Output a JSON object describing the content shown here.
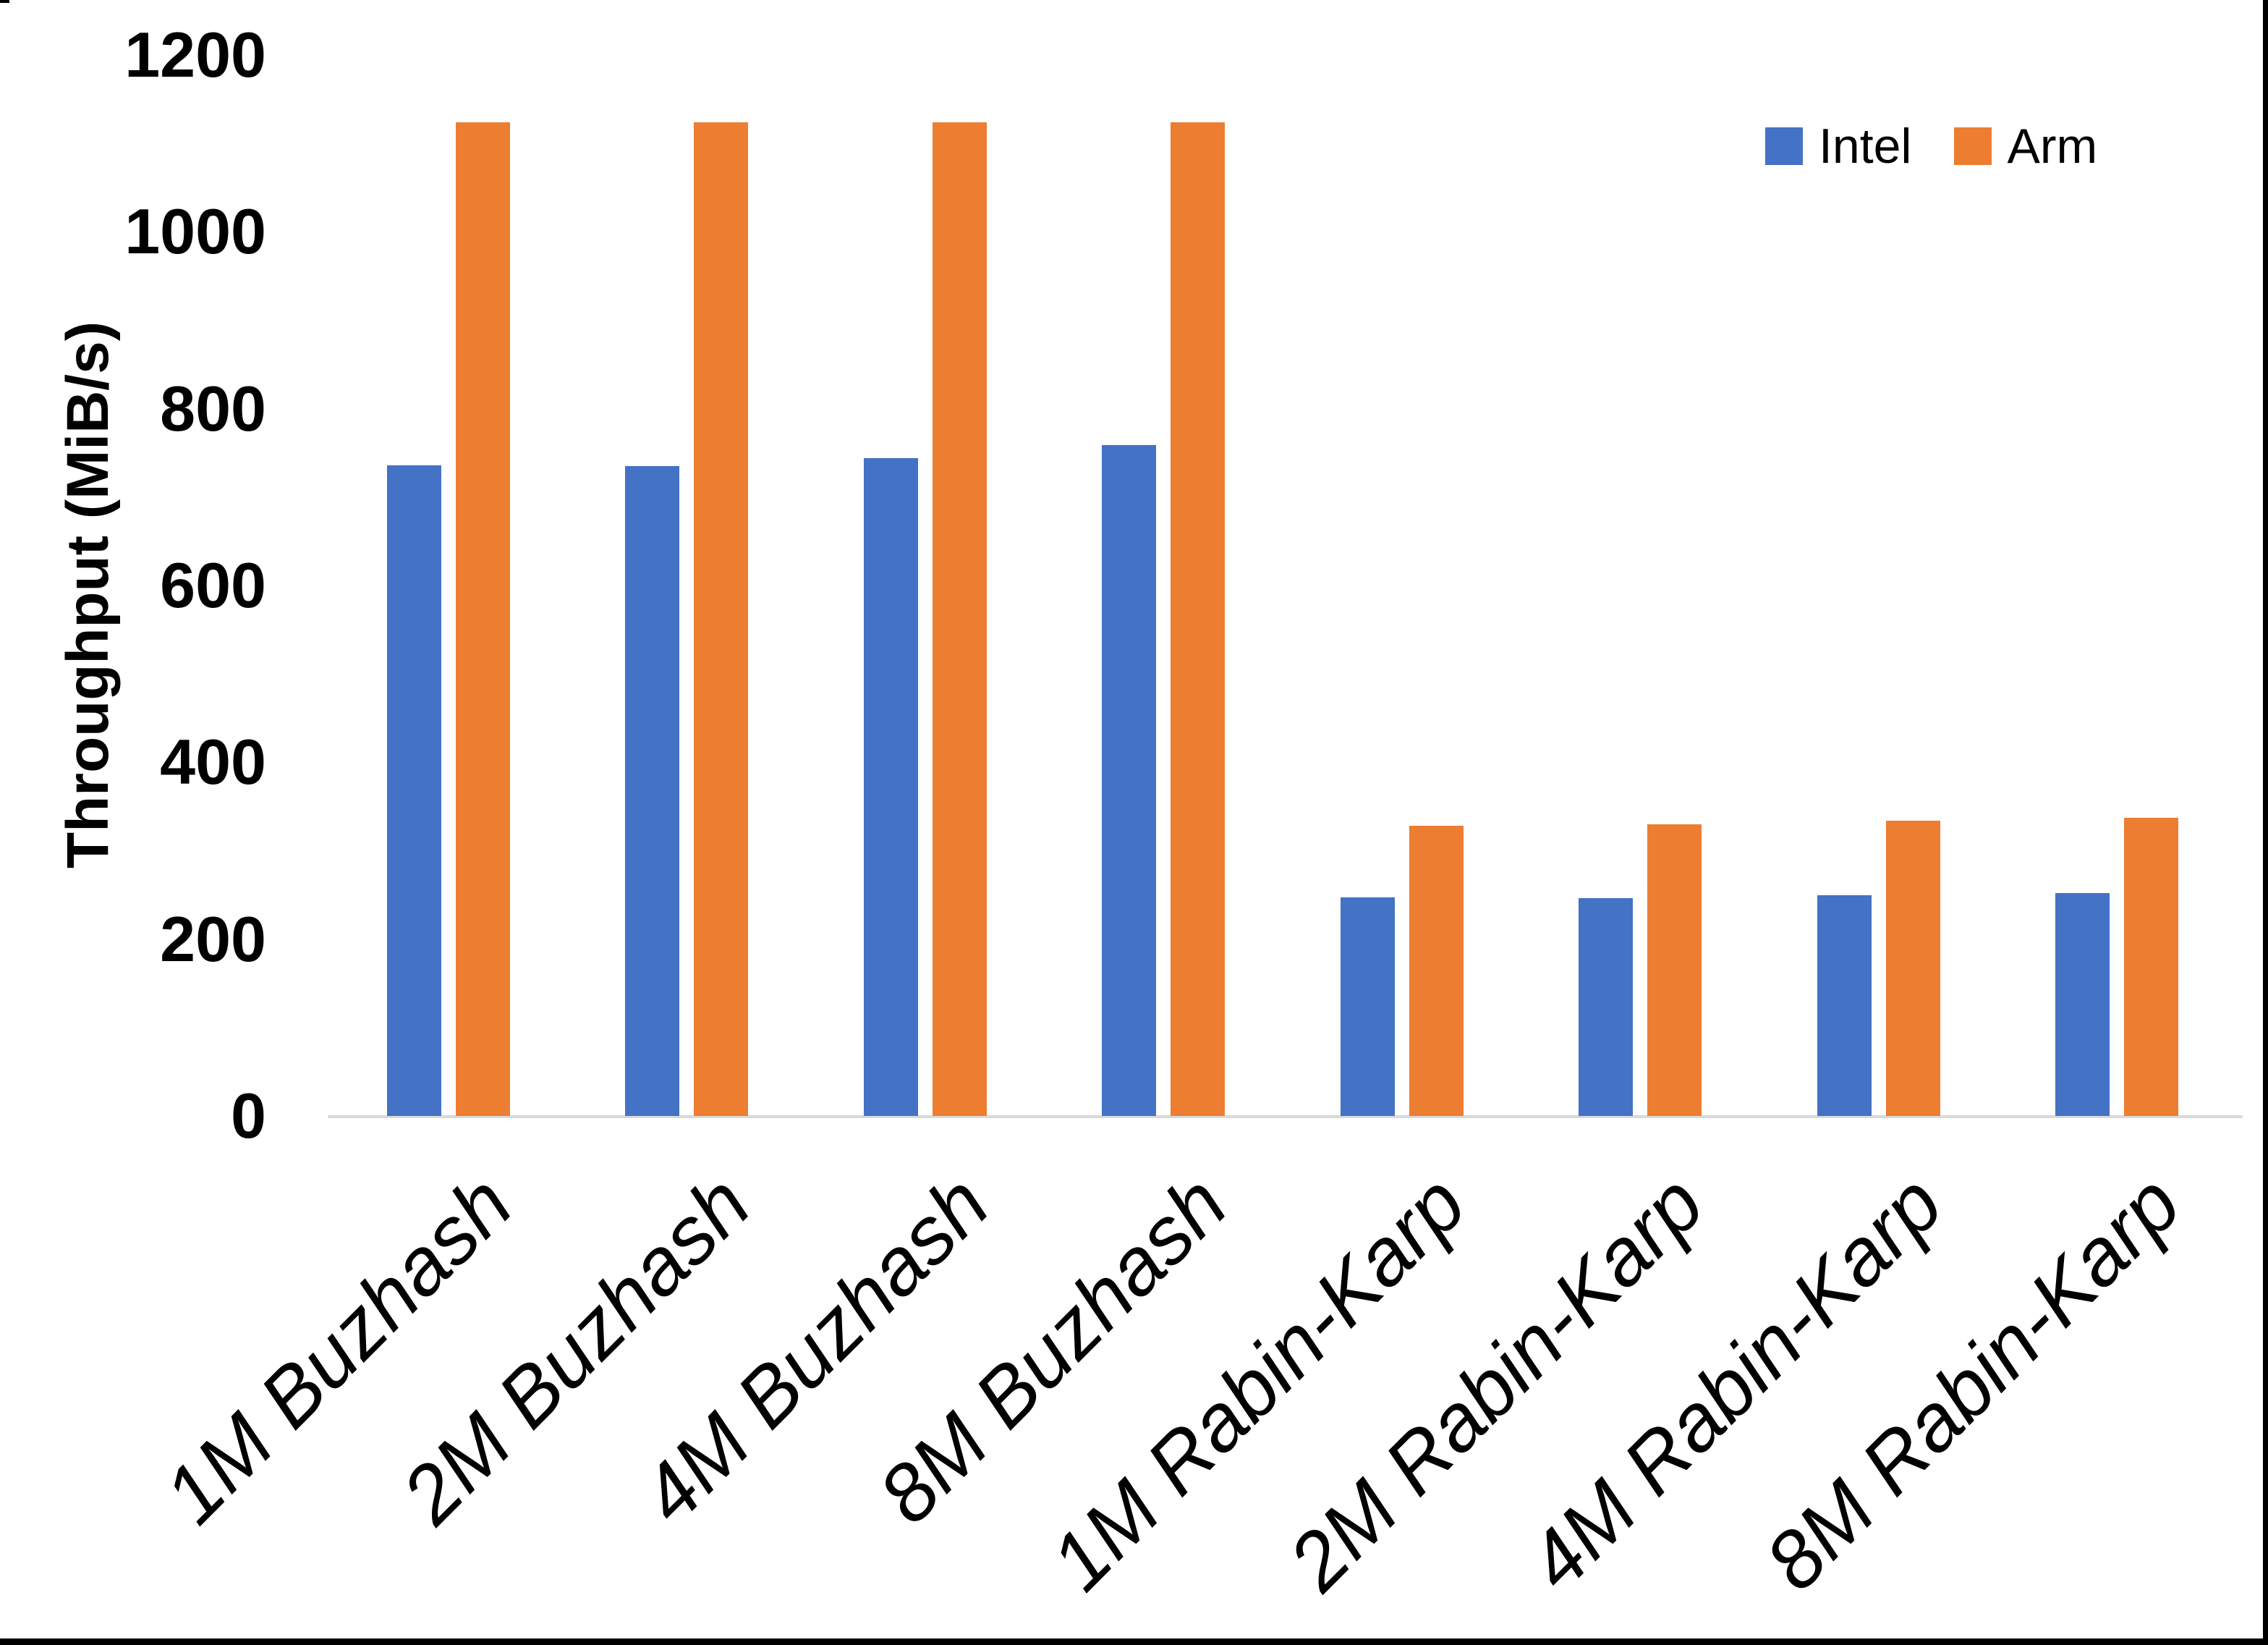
{
  "chart_data": {
    "type": "bar",
    "title": "",
    "y_axis_title": "Throughput (MiB/s)",
    "categories": [
      "1M Buzhash",
      "2M Buzhash",
      "4M Buzhash",
      "8M Buzhash",
      "1M Rabin-Karp",
      "2M Rabin-Karp",
      "4M Rabin-Karp",
      "8M Rabin-Karp"
    ],
    "series": [
      {
        "name": "Intel",
        "color": "#4472C4",
        "values": [
          736,
          735,
          744,
          759,
          247,
          246,
          250,
          252
        ]
      },
      {
        "name": "Arm",
        "color": "#ED7D31",
        "values": [
          1124,
          1124,
          1124,
          1124,
          328,
          330,
          334,
          337
        ]
      }
    ],
    "ylim": [
      0,
      1200
    ],
    "yticks": [
      0,
      200,
      400,
      600,
      800,
      1000,
      1200
    ],
    "ytick_interval": 200,
    "grid": false,
    "legend_position": "top-right",
    "axis_line_color": "#D9D9D9",
    "text_color": "#000000"
  }
}
